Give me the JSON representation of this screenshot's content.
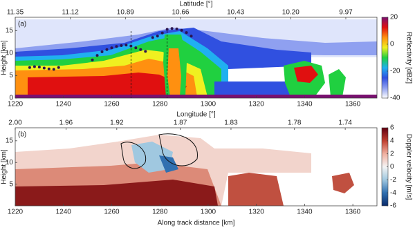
{
  "chart_data": [
    {
      "type": "heatmap",
      "label": "(a)",
      "x2label": "Latitude [°]",
      "ylabel": "Height [km]",
      "colorbar_label": "Reflectivity [dBZ]",
      "colormap": [
        "#ffffff",
        "#8fa0f0",
        "#3050e0",
        "#20b0f0",
        "#20d040",
        "#f0f020",
        "#ff9010",
        "#e01010",
        "#7a1070"
      ],
      "clim": [
        -40,
        20
      ],
      "cticks": [
        -40,
        -20,
        0,
        20
      ],
      "xlim": [
        1220,
        1370
      ],
      "xticks": [
        1220,
        1240,
        1260,
        1280,
        1300,
        1320,
        1340,
        1360
      ],
      "x2lim": [
        11.35,
        9.84
      ],
      "x2ticks": [
        11.35,
        11.12,
        10.89,
        10.66,
        10.43,
        {
          "value": 10.2,
          "label": "10.20"
        },
        9.97
      ],
      "ylim": [
        0,
        18
      ],
      "yticks": [
        0,
        5,
        10,
        15
      ],
      "points": {
        "color": "#2a1550",
        "x": [
          1226,
          1228,
          1230,
          1232,
          1234,
          1236,
          1238,
          1252,
          1254,
          1256,
          1258,
          1260,
          1262,
          1264,
          1266,
          1268,
          1270,
          1272,
          1274,
          1277,
          1279,
          1281,
          1283,
          1285,
          1287,
          1289,
          1291,
          1293
        ],
        "y": [
          6.8,
          7,
          6.9,
          6.7,
          6.5,
          6.4,
          6.8,
          8.5,
          9.5,
          10.3,
          10.8,
          11.2,
          11.5,
          11.7,
          11.8,
          11.6,
          11.2,
          10.8,
          10.4,
          13.5,
          13.8,
          14.5,
          15.3,
          15.5,
          15.4,
          15.1,
          14.6,
          13.8
        ]
      },
      "vlines": [
        1268,
        1283
      ]
    },
    {
      "type": "heatmap",
      "label": "(b)",
      "x2label": "Longitude [°]",
      "xlabel": "Along track distance [km]",
      "ylabel": "Height [km]",
      "colorbar_label": "Doppler velocity [m/s]",
      "colormap": [
        "#0a2a6a",
        "#3070b0",
        "#a0c8e0",
        "#f4f4f4",
        "#f0b0a0",
        "#c04030",
        "#600010"
      ],
      "clim": [
        -6,
        6
      ],
      "cticks": [
        -6,
        -4,
        -2,
        0,
        2,
        4,
        6
      ],
      "xlim": [
        1220,
        1370
      ],
      "xticks": [
        1220,
        1240,
        1260,
        1280,
        1300,
        1320,
        1340,
        1360
      ],
      "x2lim": [
        2,
        1.715
      ],
      "x2ticks": [
        {
          "value": 2,
          "label": "2.00"
        },
        1.96,
        1.92,
        1.87,
        1.83,
        1.78,
        1.74
      ],
      "ylim": [
        0,
        18
      ],
      "yticks": [
        5,
        10,
        15
      ]
    }
  ]
}
